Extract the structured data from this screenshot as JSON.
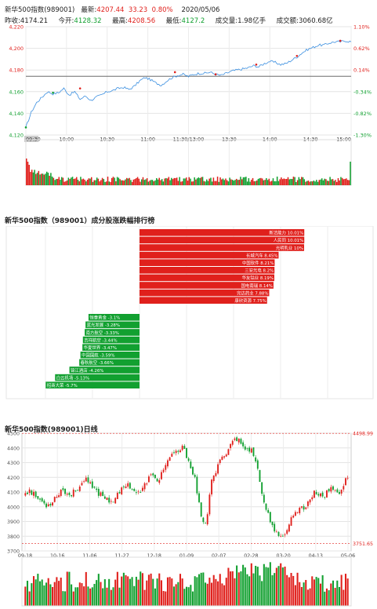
{
  "header": {
    "title": "新华500指数(989001)",
    "latest_label": "最新:",
    "latest_value": "4207.44",
    "change": "33.23",
    "change_pct": "0.80%",
    "date": "2020/05/06",
    "prev_close_label": "昨收:",
    "prev_close": "4174.21",
    "open_label": "今开:",
    "open": "4128.32",
    "high_label": "最高:",
    "high": "4208.56",
    "low_label": "最低:",
    "low": "4127.2",
    "volume_label": "成交量:",
    "volume": "1.98亿手",
    "amount_label": "成交额:",
    "amount": "3060.68亿"
  },
  "colors": {
    "up": "#e0201c",
    "down": "#12a030",
    "line": "#3b8fe0",
    "ref": "#333333"
  },
  "chart_data": [
    {
      "type": "line",
      "y_ticks": [
        "4,220",
        "4,200",
        "4,180",
        "4,160",
        "4,140",
        "4,120"
      ],
      "y_tick_values": [
        4220,
        4200,
        4180,
        4160,
        4140,
        4120
      ],
      "pct_ticks": [
        "1.10%",
        "0.62%",
        "0.14%",
        "-0.34%",
        "-0.82%",
        "-1.30%"
      ],
      "x_ticks": [
        "09:30",
        "10:00",
        "10:30",
        "11:00",
        "11:30/13:00",
        "13:30",
        "14:00",
        "14:30",
        "15:00"
      ],
      "ylim": [
        4120,
        4220
      ],
      "prev_close": 4174.21,
      "price_path": [
        [
          0,
          4127
        ],
        [
          4,
          4141
        ],
        [
          8,
          4150
        ],
        [
          12,
          4155
        ],
        [
          16,
          4160
        ],
        [
          20,
          4158
        ],
        [
          24,
          4159
        ],
        [
          28,
          4163
        ],
        [
          32,
          4157
        ],
        [
          36,
          4160
        ],
        [
          40,
          4153
        ],
        [
          44,
          4156
        ],
        [
          48,
          4152
        ],
        [
          52,
          4155
        ],
        [
          56,
          4157
        ],
        [
          60,
          4160
        ],
        [
          64,
          4161
        ],
        [
          68,
          4163
        ],
        [
          72,
          4164
        ],
        [
          76,
          4162
        ],
        [
          80,
          4165
        ],
        [
          84,
          4170
        ],
        [
          88,
          4173
        ],
        [
          92,
          4171
        ],
        [
          96,
          4168
        ],
        [
          100,
          4166
        ],
        [
          104,
          4170
        ],
        [
          108,
          4173
        ],
        [
          112,
          4175
        ],
        [
          116,
          4176
        ],
        [
          120,
          4174
        ],
        [
          124,
          4176
        ],
        [
          128,
          4177
        ],
        [
          132,
          4177
        ],
        [
          136,
          4178
        ],
        [
          140,
          4176
        ],
        [
          144,
          4175
        ],
        [
          148,
          4177
        ],
        [
          152,
          4179
        ],
        [
          156,
          4180
        ],
        [
          160,
          4181
        ],
        [
          164,
          4182
        ],
        [
          168,
          4184
        ],
        [
          172,
          4183
        ],
        [
          176,
          4186
        ],
        [
          180,
          4188
        ],
        [
          184,
          4187
        ],
        [
          188,
          4185
        ],
        [
          192,
          4186
        ],
        [
          196,
          4189
        ],
        [
          200,
          4192
        ],
        [
          204,
          4196
        ],
        [
          208,
          4199
        ],
        [
          212,
          4201
        ],
        [
          216,
          4203
        ],
        [
          220,
          4203
        ],
        [
          224,
          4205
        ],
        [
          228,
          4206
        ],
        [
          232,
          4206
        ],
        [
          236,
          4207
        ],
        [
          240,
          4206
        ]
      ],
      "markers": [
        {
          "t": 0,
          "p": 4127,
          "dir": "down"
        },
        {
          "t": 20,
          "p": 4159,
          "dir": "down"
        },
        {
          "t": 40,
          "p": 4163,
          "dir": "up"
        },
        {
          "t": 110,
          "p": 4178,
          "dir": "up"
        },
        {
          "t": 140,
          "p": 4176,
          "dir": "up"
        },
        {
          "t": 170,
          "p": 4185,
          "dir": "up"
        },
        {
          "t": 200,
          "p": 4193,
          "dir": "up"
        },
        {
          "t": 232,
          "p": 4207,
          "dir": "up"
        }
      ]
    },
    {
      "type": "bar",
      "title": "新华500指数（989001）成分股涨跌幅排行榜",
      "up_items": [
        {
          "name": "新洁能力",
          "value": 10.01,
          "label": "新洁能力 10.01%"
        },
        {
          "name": "人民同",
          "value": 10.01,
          "label": "人民同   10.01%"
        },
        {
          "name": "光明乳业",
          "value": 10.0,
          "label": "光明乳业 10%"
        },
        {
          "name": "长城汽车",
          "value": 8.45,
          "label": "长城汽车 8.45%"
        },
        {
          "name": "中国软件",
          "value": 8.21,
          "label": "中国软件 8.21%"
        },
        {
          "name": "三安光电",
          "value": 8.2,
          "label": "三安光电 8.2%"
        },
        {
          "name": "华友钴业",
          "value": 8.19,
          "label": "华友钴业 8.19%"
        },
        {
          "name": "国电南瑞",
          "value": 8.14,
          "label": "国电南瑞 8.14%"
        },
        {
          "name": "完达药业",
          "value": 7.88,
          "label": "完达药业 7.88%"
        },
        {
          "name": "康欣资源",
          "value": 7.75,
          "label": "康欣资源 7.75%"
        }
      ],
      "down_items": [
        {
          "name": "恒泰黄金",
          "value": -3.1,
          "label": "恒泰黄金 -3.1%"
        },
        {
          "name": "蓝光发展",
          "value": -3.28,
          "label": "蓝光发展 -3.28%"
        },
        {
          "name": "南方航空",
          "value": -3.33,
          "label": "南方航空 -3.33%"
        },
        {
          "name": "吉祥航空",
          "value": -3.44,
          "label": "吉祥航空 -3.44%"
        },
        {
          "name": "华夏世界",
          "value": -3.47,
          "label": "华夏世界 -3.47%"
        },
        {
          "name": "中国国航",
          "value": -3.59,
          "label": "中国国航 -3.59%"
        },
        {
          "name": "春秋航空",
          "value": -3.66,
          "label": "春秋航空 -3.66%"
        },
        {
          "name": "锦江酒店",
          "value": -4.26,
          "label": "锦江酒店 -4.26%"
        },
        {
          "name": "白云机场",
          "value": -5.13,
          "label": "白云机场 -5.13%"
        },
        {
          "name": "招商大荣",
          "value": -5.7,
          "label": "招商大荣 -5.7%"
        }
      ]
    },
    {
      "type": "candlestick",
      "title": "新华500指数(989001)日线",
      "y_ticks": [
        "4500",
        "4400",
        "4300",
        "4200",
        "4100",
        "4000",
        "3900",
        "3800",
        "3700"
      ],
      "y_tick_values": [
        4500,
        4400,
        4300,
        4200,
        4100,
        4000,
        3900,
        3800,
        3700
      ],
      "x_ticks": [
        "09-18",
        "10-16",
        "11-06",
        "11-27",
        "12-18",
        "01-09",
        "02-07",
        "02-28",
        "03-20",
        "04-13",
        "05-06"
      ],
      "ylim": [
        3700,
        4500
      ],
      "high_mark": "4498.99",
      "high_mark_value": 4498.99,
      "low_mark": "3751.65",
      "low_mark_value": 3751.65,
      "close_path": [
        4100,
        4110,
        4085,
        4060,
        4040,
        4010,
        4020,
        4050,
        4085,
        4120,
        4095,
        4080,
        4100,
        4130,
        4160,
        4180,
        4150,
        4120,
        4095,
        4085,
        4060,
        4040,
        4050,
        4080,
        4120,
        4160,
        4140,
        4110,
        4090,
        4110,
        4170,
        4210,
        4195,
        4180,
        4240,
        4300,
        4330,
        4360,
        4380,
        4400,
        4350,
        4280,
        4200,
        4030,
        3870,
        3920,
        4150,
        4220,
        4290,
        4340,
        4380,
        4430,
        4470,
        4450,
        4410,
        4380,
        4400,
        4340,
        4200,
        4050,
        3960,
        3900,
        3830,
        3780,
        3800,
        3860,
        3920,
        3960,
        4000,
        3980,
        4030,
        4070,
        4100,
        4090,
        4070,
        4100,
        4130,
        4110,
        4100,
        4150,
        4210
      ]
    }
  ]
}
